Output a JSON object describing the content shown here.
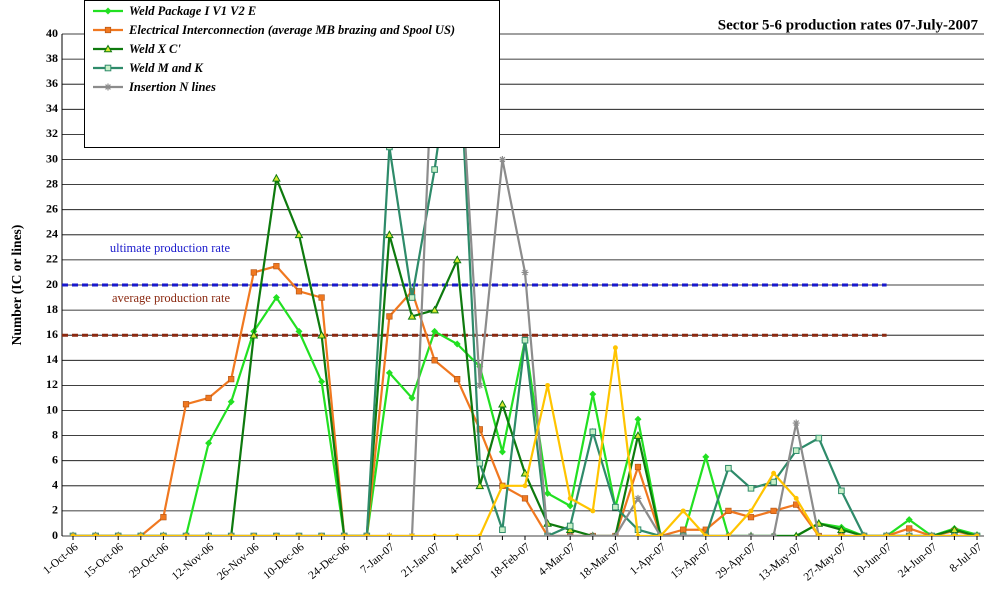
{
  "chart_data": {
    "type": "line",
    "title": "Sector 5-6 production rates 07-July-2007",
    "y_label": "Number (IC or lines)",
    "categories": [
      "1-Oct-06",
      null,
      "15-Oct-06",
      null,
      "29-Oct-06",
      null,
      "12-Nov-06",
      null,
      "26-Nov-06",
      null,
      "10-Dec-06",
      null,
      "24-Dec-06",
      null,
      "7-Jan-07",
      null,
      "21-Jan-07",
      null,
      "4-Feb-07",
      null,
      "18-Feb-07",
      null,
      "4-Mar-07",
      null,
      "18-Mar-07",
      null,
      "1-Apr-07",
      null,
      "15-Apr-07",
      null,
      "29-Apr-07",
      null,
      "13-May-07",
      null,
      "27-May-07",
      null,
      "10-Jun-07",
      null,
      "24-Jun-07",
      null,
      "8-Jul-07"
    ],
    "ylim": [
      0,
      40
    ],
    "yticks": [
      0,
      2,
      4,
      6,
      8,
      10,
      12,
      14,
      16,
      18,
      20,
      22,
      24,
      26,
      28,
      30,
      32,
      34,
      36,
      38,
      40
    ],
    "grid": true,
    "reference_lines": [
      {
        "value": 20,
        "label": "ultimate production rate",
        "color": "#1a1acc"
      },
      {
        "value": 16,
        "label": "average production rate",
        "color": "#8b2a12"
      }
    ],
    "series": [
      {
        "name": "Weld Package I V1 V2  E",
        "color": "#22e022",
        "marker": "diamond",
        "values": [
          0,
          0,
          0,
          0,
          0,
          0,
          7.4,
          10.7,
          16.3,
          19,
          16.3,
          12.3,
          0,
          0,
          13,
          11,
          16.3,
          15.3,
          13.5,
          6.7,
          15.6,
          3.4,
          2.4,
          11.3,
          2.3,
          9.3,
          0,
          0,
          6.3,
          0,
          0,
          0,
          0,
          1,
          0.7,
          0,
          0,
          1.3,
          0,
          0.6,
          0.1
        ]
      },
      {
        "name": "Electrical Interconnection (average MB brazing and Spool US)",
        "color": "#f07820",
        "marker": "square",
        "values": [
          0,
          0,
          0,
          0,
          1.5,
          10.5,
          11,
          12.5,
          21,
          21.5,
          19.5,
          19,
          0,
          0,
          17.5,
          19.5,
          14,
          12.5,
          8.5,
          4,
          3,
          0,
          0,
          0,
          0,
          5.5,
          0,
          0.5,
          0.5,
          2,
          1.5,
          2,
          2.5,
          0,
          0,
          0,
          0,
          0.6,
          0,
          0.4,
          0
        ]
      },
      {
        "name": "Weld  X C'",
        "color": "#0e7a0e",
        "marker": "triangle",
        "values": [
          0,
          0,
          0,
          0,
          0,
          0,
          0,
          0,
          16,
          28.5,
          24,
          16,
          0,
          0,
          24,
          17.5,
          18,
          22,
          4,
          10.5,
          5,
          1,
          0.5,
          0,
          0,
          8,
          0,
          0,
          0,
          0,
          0,
          0,
          0,
          1,
          0.5,
          0,
          0,
          0,
          0,
          0.5,
          0
        ]
      },
      {
        "name": "Weld M and K",
        "color": "#2e8b6a",
        "marker": "open-square",
        "values": [
          0,
          0,
          0,
          0,
          0,
          0,
          0,
          0,
          0,
          0,
          0,
          0,
          0,
          0,
          31,
          19,
          29.2,
          42,
          5.8,
          0.5,
          15.6,
          0,
          0.8,
          8.3,
          2.3,
          0.5,
          0,
          0,
          0,
          5.4,
          3.8,
          4.3,
          6.8,
          7.8,
          3.6,
          0,
          0,
          0,
          0,
          0,
          0
        ]
      },
      {
        "name": "Insertion N lines",
        "color": "#8c8c8c",
        "marker": "asterisk",
        "values": [
          0,
          0,
          0,
          0,
          0,
          0,
          0,
          0,
          0,
          0,
          0,
          0,
          0,
          0,
          0,
          0,
          42,
          42,
          12,
          30,
          21,
          0,
          0,
          0,
          0,
          3,
          0,
          0,
          0,
          0,
          0,
          0,
          9,
          0,
          0,
          0,
          0,
          0,
          0,
          0,
          0
        ]
      },
      {
        "color": "#ffc400",
        "marker": "circle",
        "values": [
          0,
          0,
          0,
          0,
          0,
          0,
          0,
          0,
          0,
          0,
          0,
          0,
          0,
          0,
          0,
          0,
          0,
          0,
          0,
          4,
          4,
          12,
          3,
          2,
          15,
          0,
          0,
          2,
          0,
          0,
          2,
          5,
          3,
          0,
          0,
          0,
          0,
          0,
          0,
          0,
          0
        ]
      }
    ]
  }
}
